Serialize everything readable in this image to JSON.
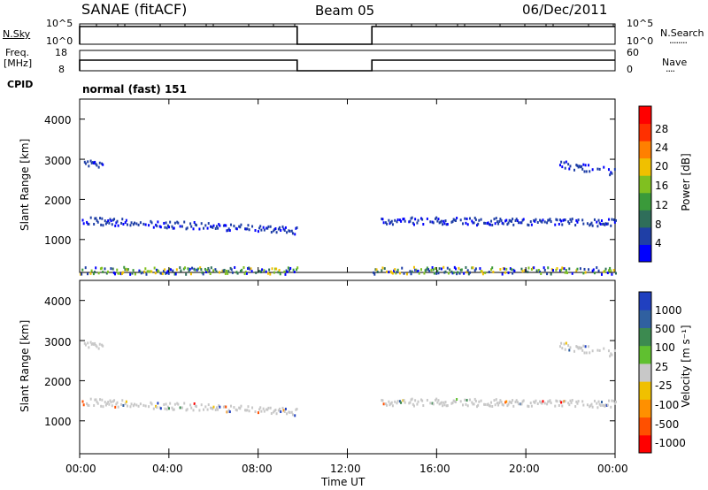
{
  "header": {
    "title_left": "SANAE (fitACF)",
    "title_center": "Beam 05",
    "title_right": "06/Dec/2011"
  },
  "noise_panel": {
    "left_label": "N.Sky",
    "right_label": "N.Search",
    "right_label_dots": "........",
    "left_ticks": [
      "10^5",
      "10^0"
    ],
    "right_ticks": [
      "10^5",
      "10^0"
    ]
  },
  "freq_panel": {
    "left_label_line1": "Freq.",
    "left_label_line2": "[MHz]",
    "right_label": "Nave",
    "right_label_dots": "....",
    "left_ticks": [
      "18",
      "8"
    ],
    "right_ticks": [
      "60",
      "0"
    ]
  },
  "cpid": {
    "label": "CPID",
    "value": "normal (fast) 151"
  },
  "power_panel": {
    "ylabel": "Slant Range [km]",
    "yticks": [
      "4000",
      "3000",
      "2000",
      "1000"
    ],
    "colorbar_label": "Power [dB]",
    "colorbar_ticks": [
      "28",
      "24",
      "20",
      "16",
      "12",
      "8",
      "4"
    ],
    "colors": [
      "#0000ff",
      "#1f3fa6",
      "#2f6e5a",
      "#3a9a3a",
      "#80c020",
      "#f0c000",
      "#ff8000",
      "#ff3000",
      "#ff0000"
    ]
  },
  "velocity_panel": {
    "ylabel": "Slant Range [km]",
    "yticks": [
      "4000",
      "3000",
      "2000",
      "1000"
    ],
    "colorbar_label": "Velocity [m s⁻¹]",
    "colorbar_ticks": [
      "1000",
      "500",
      "100",
      "25",
      "-25",
      "-100",
      "-500",
      "-1000"
    ],
    "colors": [
      "#2040c0",
      "#3060a0",
      "#3c8a50",
      "#60c030",
      "#c8c8c8",
      "#f0c000",
      "#ff9000",
      "#ff5000",
      "#ff0000"
    ]
  },
  "xaxis": {
    "label": "Time UT",
    "ticks": [
      "00:00",
      "04:00",
      "08:00",
      "12:00",
      "16:00",
      "20:00",
      "00:00"
    ]
  },
  "chart_data": [
    {
      "type": "line",
      "title": "N.Sky / N.Search",
      "x_range_hours": [
        0,
        24
      ],
      "y_scale": "log",
      "ylim": [
        "10^0",
        "10^5"
      ],
      "data_gap_hours": [
        9.75,
        13.1
      ],
      "level": "10^5"
    },
    {
      "type": "line",
      "title": "Freq. [MHz] / Nave",
      "x_range_hours": [
        0,
        24
      ],
      "ylim": [
        8,
        18
      ],
      "data_gap_hours": [
        9.75,
        13.1
      ],
      "approx_freq_mhz": 12
    },
    {
      "type": "heatmap",
      "title": "Power [dB]",
      "xlabel": "Time UT",
      "ylabel": "Slant Range [km]",
      "xlim_hours": [
        0,
        24
      ],
      "ylim_km": [
        180,
        4500
      ],
      "colorbar_range": [
        0,
        30
      ],
      "data_gap_hours": [
        9.75,
        13.1
      ],
      "echo_bands": [
        {
          "t_start": 0.1,
          "t_end": 9.7,
          "range_start_km": 1500,
          "range_end_km": 1250,
          "value_db": 6
        },
        {
          "t_start": 13.5,
          "t_end": 24,
          "range_start_km": 1500,
          "range_end_km": 1450,
          "value_db": 6
        },
        {
          "t_start": 0.1,
          "t_end": 1.0,
          "range_start_km": 2900,
          "range_end_km": 2900,
          "value_db": 5
        },
        {
          "t_start": 21.5,
          "t_end": 24,
          "range_start_km": 2900,
          "range_end_km": 2700,
          "value_db": 5
        },
        {
          "t_start": 0,
          "t_end": 24,
          "range_start_km": 250,
          "range_end_km": 250,
          "value_db": 10
        }
      ]
    },
    {
      "type": "heatmap",
      "title": "Velocity [m s⁻¹]",
      "xlabel": "Time UT",
      "ylabel": "Slant Range [km]",
      "xlim_hours": [
        0,
        24
      ],
      "ylim_km": [
        180,
        4500
      ],
      "colorbar_levels": [
        -1000,
        -500,
        -100,
        -25,
        25,
        100,
        500,
        1000
      ],
      "data_gap_hours": [
        9.75,
        13.1
      ],
      "echo_bands": [
        {
          "t_start": 0.1,
          "t_end": 9.7,
          "range_start_km": 1500,
          "range_end_km": 1250,
          "value_ms": 0
        },
        {
          "t_start": 13.5,
          "t_end": 24,
          "range_start_km": 1500,
          "range_end_km": 1450,
          "value_ms": 0
        },
        {
          "t_start": 0.1,
          "t_end": 1.0,
          "range_start_km": 2900,
          "range_end_km": 2900,
          "value_ms": 0
        },
        {
          "t_start": 21.5,
          "t_end": 24,
          "range_start_km": 2900,
          "range_end_km": 2700,
          "value_ms": 0
        }
      ]
    }
  ]
}
